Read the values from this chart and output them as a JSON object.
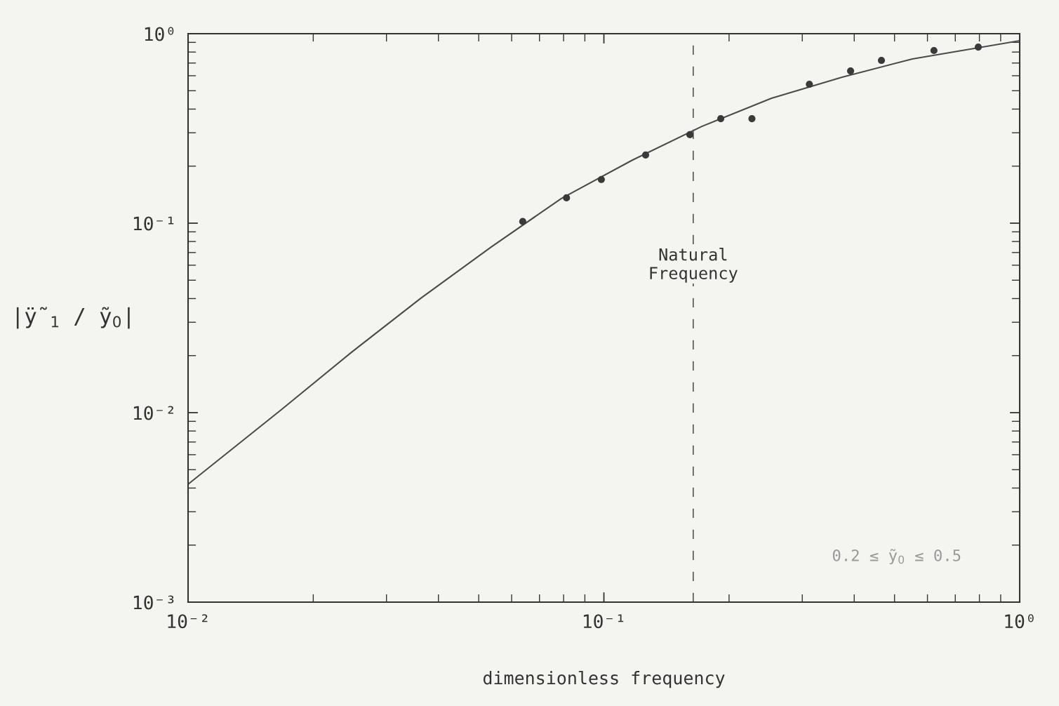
{
  "chart_data": {
    "type": "scatter",
    "xlabel": "dimensionless frequency",
    "ylabel": "|ÿ̃$_{1}$ / ỹ$_{0}$|",
    "log": "xy",
    "grid": false,
    "legend": false,
    "xlim": [
      0.01,
      1
    ],
    "ylim": [
      0.001,
      1
    ],
    "xticks": [
      {
        "value": 0.01,
        "label": "10⁻²"
      },
      {
        "value": 0.1,
        "label": "10⁻¹"
      },
      {
        "value": 1,
        "label": "10⁰"
      }
    ],
    "yticks": [
      {
        "value": 0.001,
        "label": "10⁻³"
      },
      {
        "value": 0.01,
        "label": "10⁻²"
      },
      {
        "value": 0.1,
        "label": "10⁻¹"
      },
      {
        "value": 1,
        "label": "10⁰"
      }
    ],
    "series": [
      {
        "color": "#3a3a3a",
        "marker": "circle",
        "x": [
          0.0638,
          0.0813,
          0.0986,
          0.126,
          0.161,
          0.191,
          0.227,
          0.312,
          0.392,
          0.465,
          0.622,
          0.795
        ],
        "values": [
          0.102,
          0.136,
          0.17,
          0.229,
          0.293,
          0.356,
          0.356,
          0.541,
          0.636,
          0.723,
          0.815,
          0.85
        ]
      },
      {
        "type": "line",
        "color": "#4a4a4a",
        "marker": "none",
        "line_style": "solid",
        "x": [
          0.01,
          0.0167,
          0.0247,
          0.0363,
          0.0536,
          0.079,
          0.117,
          0.172,
          0.253,
          0.374,
          0.552,
          1
        ],
        "values": [
          0.00419,
          0.0103,
          0.0208,
          0.0402,
          0.0749,
          0.135,
          0.215,
          0.324,
          0.456,
          0.589,
          0.736,
          0.918
        ]
      }
    ],
    "ref_lines": [
      {
        "axis": "x",
        "value": 0.164,
        "label": "Natural\nFrequency",
        "line_style": "dashed",
        "color": "#555555"
      }
    ],
    "annotations": [
      "0.2 ≤ ỹ$_{0}$ ≤ 0.5"
    ]
  }
}
